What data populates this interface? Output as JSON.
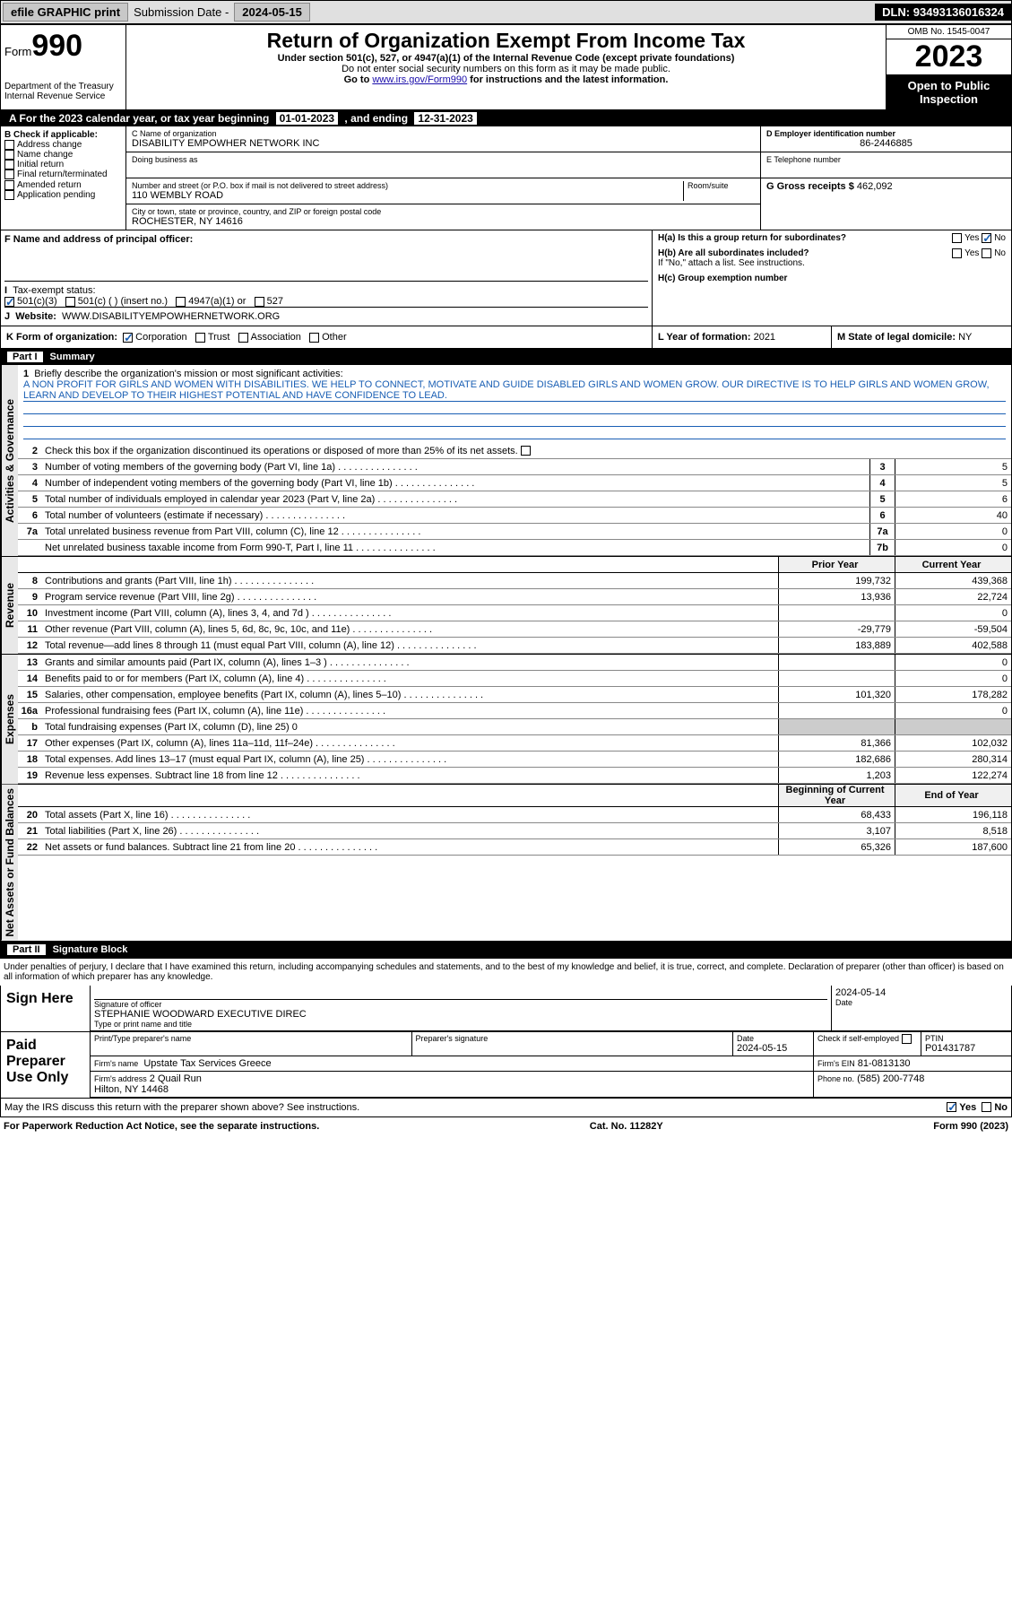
{
  "topbar": {
    "efile": "efile GRAPHIC print",
    "sub_label": "Submission Date -",
    "sub_date": "2024-05-15",
    "dln_label": "DLN:",
    "dln": "93493136016324"
  },
  "header": {
    "form_label": "Form",
    "form_num": "990",
    "dept": "Department of the Treasury\nInternal Revenue Service",
    "title": "Return of Organization Exempt From Income Tax",
    "sub1": "Under section 501(c), 527, or 4947(a)(1) of the Internal Revenue Code (except private foundations)",
    "sub2": "Do not enter social security numbers on this form as it may be made public.",
    "sub3_pre": "Go to ",
    "sub3_link": "www.irs.gov/Form990",
    "sub3_post": " for instructions and the latest information.",
    "omb": "OMB No. 1545-0047",
    "year": "2023",
    "open": "Open to Public Inspection"
  },
  "tax_year": {
    "label_a": "A For the 2023 calendar year, or tax year beginning ",
    "begin": "01-01-2023",
    "mid": " , and ending ",
    "end": "12-31-2023"
  },
  "section_b": {
    "b_label": "B Check if applicable:",
    "checks": [
      "Address change",
      "Name change",
      "Initial return",
      "Final return/terminated",
      "Amended return",
      "Application pending"
    ],
    "c_name_label": "C Name of organization",
    "c_name": "DISABILITY EMPOWHER NETWORK INC",
    "dba_label": "Doing business as",
    "addr_label": "Number and street (or P.O. box if mail is not delivered to street address)",
    "room_label": "Room/suite",
    "addr": "110 WEMBLY ROAD",
    "city_label": "City or town, state or province, country, and ZIP or foreign postal code",
    "city": "ROCHESTER, NY  14616",
    "d_label": "D Employer identification number",
    "d_val": "86-2446885",
    "e_label": "E Telephone number",
    "g_label": "G Gross receipts $",
    "g_val": "462,092"
  },
  "section_fgh": {
    "f_label": "F Name and address of principal officer:",
    "i_label": "Tax-exempt status:",
    "i_opts": [
      "501(c)(3)",
      "501(c) ( ) (insert no.)",
      "4947(a)(1) or",
      "527"
    ],
    "j_label": "Website:",
    "j_val": "WWW.DISABILITYEMPOWHERNETWORK.ORG",
    "ha_label": "H(a)  Is this a group return for subordinates?",
    "hb_label": "H(b)  Are all subordinates included?",
    "hb_note": "If \"No,\" attach a list. See instructions.",
    "hc_label": "H(c)  Group exemption number",
    "yes": "Yes",
    "no": "No"
  },
  "section_k": {
    "k_label": "K Form of organization:",
    "k_opts": [
      "Corporation",
      "Trust",
      "Association",
      "Other"
    ],
    "l_label": "L Year of formation:",
    "l_val": "2021",
    "m_label": "M State of legal domicile:",
    "m_val": "NY"
  },
  "part1": {
    "header": "Part I",
    "title": "Summary",
    "tab_gov": "Activities & Governance",
    "tab_rev": "Revenue",
    "tab_exp": "Expenses",
    "tab_net": "Net Assets or Fund Balances",
    "line1_label": "Briefly describe the organization's mission or most significant activities:",
    "line1_text": "A NON PROFIT FOR GIRLS AND WOMEN WITH DISABILITIES. WE HELP TO CONNECT, MOTIVATE AND GUIDE DISABLED GIRLS AND WOMEN GROW. OUR DIRECTIVE IS TO HELP GIRLS AND WOMEN GROW, LEARN AND DEVELOP TO THEIR HIGHEST POTENTIAL AND HAVE CONFIDENCE TO LEAD.",
    "line2": "Check this box      if the organization discontinued its operations or disposed of more than 25% of its net assets.",
    "rows_gov": [
      {
        "n": "3",
        "t": "Number of voting members of the governing body (Part VI, line 1a)",
        "box": "3",
        "v": "5"
      },
      {
        "n": "4",
        "t": "Number of independent voting members of the governing body (Part VI, line 1b)",
        "box": "4",
        "v": "5"
      },
      {
        "n": "5",
        "t": "Total number of individuals employed in calendar year 2023 (Part V, line 2a)",
        "box": "5",
        "v": "6"
      },
      {
        "n": "6",
        "t": "Total number of volunteers (estimate if necessary)",
        "box": "6",
        "v": "40"
      },
      {
        "n": "7a",
        "t": "Total unrelated business revenue from Part VIII, column (C), line 12",
        "box": "7a",
        "v": "0"
      },
      {
        "n": "",
        "t": "Net unrelated business taxable income from Form 990-T, Part I, line 11",
        "box": "7b",
        "v": "0"
      }
    ],
    "col_head_prior": "Prior Year",
    "col_head_curr": "Current Year",
    "begin_year": "Beginning of Current Year",
    "end_year": "End of Year",
    "rows_rev": [
      {
        "n": "8",
        "t": "Contributions and grants (Part VIII, line 1h)",
        "p": "199,732",
        "c": "439,368"
      },
      {
        "n": "9",
        "t": "Program service revenue (Part VIII, line 2g)",
        "p": "13,936",
        "c": "22,724"
      },
      {
        "n": "10",
        "t": "Investment income (Part VIII, column (A), lines 3, 4, and 7d )",
        "p": "",
        "c": "0"
      },
      {
        "n": "11",
        "t": "Other revenue (Part VIII, column (A), lines 5, 6d, 8c, 9c, 10c, and 11e)",
        "p": "-29,779",
        "c": "-59,504"
      },
      {
        "n": "12",
        "t": "Total revenue—add lines 8 through 11 (must equal Part VIII, column (A), line 12)",
        "p": "183,889",
        "c": "402,588"
      }
    ],
    "rows_exp": [
      {
        "n": "13",
        "t": "Grants and similar amounts paid (Part IX, column (A), lines 1–3 )",
        "p": "",
        "c": "0"
      },
      {
        "n": "14",
        "t": "Benefits paid to or for members (Part IX, column (A), line 4)",
        "p": "",
        "c": "0"
      },
      {
        "n": "15",
        "t": "Salaries, other compensation, employee benefits (Part IX, column (A), lines 5–10)",
        "p": "101,320",
        "c": "178,282"
      },
      {
        "n": "16a",
        "t": "Professional fundraising fees (Part IX, column (A), line 11e)",
        "p": "",
        "c": "0"
      },
      {
        "n": "b",
        "t": "Total fundraising expenses (Part IX, column (D), line 25) 0",
        "p": "–",
        "c": "–"
      },
      {
        "n": "17",
        "t": "Other expenses (Part IX, column (A), lines 11a–11d, 11f–24e)",
        "p": "81,366",
        "c": "102,032"
      },
      {
        "n": "18",
        "t": "Total expenses. Add lines 13–17 (must equal Part IX, column (A), line 25)",
        "p": "182,686",
        "c": "280,314"
      },
      {
        "n": "19",
        "t": "Revenue less expenses. Subtract line 18 from line 12",
        "p": "1,203",
        "c": "122,274"
      }
    ],
    "rows_net": [
      {
        "n": "20",
        "t": "Total assets (Part X, line 16)",
        "p": "68,433",
        "c": "196,118"
      },
      {
        "n": "21",
        "t": "Total liabilities (Part X, line 26)",
        "p": "3,107",
        "c": "8,518"
      },
      {
        "n": "22",
        "t": "Net assets or fund balances. Subtract line 21 from line 20",
        "p": "65,326",
        "c": "187,600"
      }
    ]
  },
  "part2": {
    "header": "Part II",
    "title": "Signature Block",
    "perjury": "Under penalties of perjury, I declare that I have examined this return, including accompanying schedules and statements, and to the best of my knowledge and belief, it is true, correct, and complete. Declaration of preparer (other than officer) is based on all information of which preparer has any knowledge.",
    "sign_here": "Sign Here",
    "sig_officer_label": "Signature of officer",
    "sig_name": "STEPHANIE WOODWARD EXECUTIVE DIREC",
    "sig_type_label": "Type or print name and title",
    "date_label": "Date",
    "sig_date": "2024-05-14",
    "paid": "Paid Preparer Use Only",
    "prep_name_label": "Print/Type preparer's name",
    "prep_sig_label": "Preparer's signature",
    "prep_date_label": "Date",
    "prep_date": "2024-05-15",
    "check_se": "Check       if self-employed",
    "ptin_label": "PTIN",
    "ptin": "P01431787",
    "firm_name_label": "Firm's name",
    "firm_name": "Upstate Tax Services Greece",
    "firm_ein_label": "Firm's EIN",
    "firm_ein": "81-0813130",
    "firm_addr_label": "Firm's address",
    "firm_addr": "2 Quail Run",
    "firm_city": "Hilton, NY  14468",
    "phone_label": "Phone no.",
    "phone": "(585) 200-7748",
    "discuss": "May the IRS discuss this return with the preparer shown above? See instructions."
  },
  "footer": {
    "left": "For Paperwork Reduction Act Notice, see the separate instructions.",
    "mid": "Cat. No. 11282Y",
    "right": "Form 990 (2023)"
  }
}
